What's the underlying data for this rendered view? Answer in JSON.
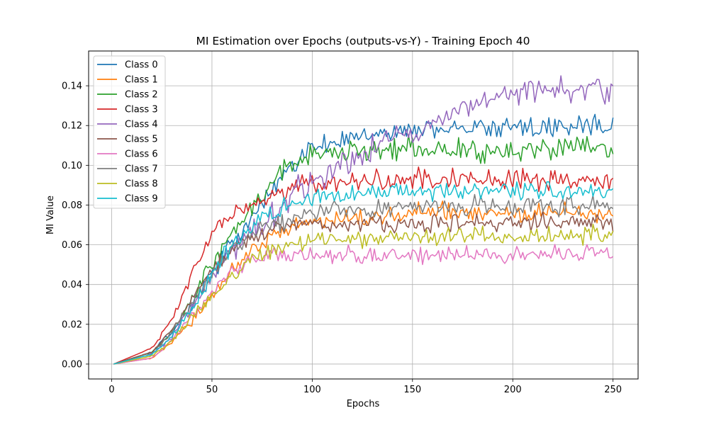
{
  "chart_data": {
    "type": "line",
    "title": "MI Estimation over Epochs (outputs-vs-Y) - Training Epoch 40",
    "xlabel": "Epochs",
    "ylabel": "MI Value",
    "xlim": [
      -11.5,
      262.5
    ],
    "ylim": [
      -0.0075,
      0.1575
    ],
    "xticks": [
      0,
      50,
      100,
      150,
      200,
      250
    ],
    "yticks": [
      0.0,
      0.02,
      0.04,
      0.06,
      0.08,
      0.1,
      0.12,
      0.14
    ],
    "ytick_labels": [
      "0.00",
      "0.02",
      "0.04",
      "0.06",
      "0.08",
      "0.10",
      "0.12",
      "0.14"
    ],
    "grid": true,
    "legend_position": "upper-left",
    "x_range": [
      1,
      250
    ],
    "series": [
      {
        "name": "Class 0",
        "color": "#1f77b4",
        "keypoints": [
          [
            1,
            0
          ],
          [
            20,
            0.006
          ],
          [
            30,
            0.016
          ],
          [
            40,
            0.03
          ],
          [
            50,
            0.046
          ],
          [
            60,
            0.06
          ],
          [
            70,
            0.074
          ],
          [
            80,
            0.088
          ],
          [
            90,
            0.1
          ],
          [
            100,
            0.108
          ],
          [
            115,
            0.113
          ],
          [
            130,
            0.116
          ],
          [
            150,
            0.118
          ],
          [
            200,
            0.119
          ],
          [
            250,
            0.12
          ]
        ],
        "noise": 0.0024
      },
      {
        "name": "Class 1",
        "color": "#ff7f0e",
        "keypoints": [
          [
            1,
            0
          ],
          [
            20,
            0.003
          ],
          [
            30,
            0.011
          ],
          [
            40,
            0.022
          ],
          [
            50,
            0.035
          ],
          [
            60,
            0.047
          ],
          [
            70,
            0.056
          ],
          [
            80,
            0.064
          ],
          [
            90,
            0.069
          ],
          [
            100,
            0.072
          ],
          [
            120,
            0.074
          ],
          [
            150,
            0.076
          ],
          [
            250,
            0.076
          ]
        ],
        "noise": 0.0022
      },
      {
        "name": "Class 2",
        "color": "#2ca02c",
        "keypoints": [
          [
            1,
            0
          ],
          [
            20,
            0.006
          ],
          [
            30,
            0.016
          ],
          [
            40,
            0.032
          ],
          [
            50,
            0.052
          ],
          [
            60,
            0.065
          ],
          [
            70,
            0.078
          ],
          [
            80,
            0.092
          ],
          [
            90,
            0.101
          ],
          [
            100,
            0.106
          ],
          [
            120,
            0.107
          ],
          [
            150,
            0.108
          ],
          [
            200,
            0.108
          ],
          [
            250,
            0.109
          ]
        ],
        "noise": 0.0032
      },
      {
        "name": "Class 3",
        "color": "#d62728",
        "keypoints": [
          [
            1,
            0
          ],
          [
            20,
            0.008
          ],
          [
            30,
            0.022
          ],
          [
            40,
            0.045
          ],
          [
            50,
            0.066
          ],
          [
            60,
            0.075
          ],
          [
            70,
            0.08
          ],
          [
            80,
            0.085
          ],
          [
            90,
            0.089
          ],
          [
            100,
            0.091
          ],
          [
            130,
            0.092
          ],
          [
            150,
            0.093
          ],
          [
            250,
            0.092
          ]
        ],
        "noise": 0.0025
      },
      {
        "name": "Class 4",
        "color": "#9467bd",
        "keypoints": [
          [
            1,
            0
          ],
          [
            20,
            0.005
          ],
          [
            30,
            0.014
          ],
          [
            40,
            0.028
          ],
          [
            50,
            0.045
          ],
          [
            60,
            0.058
          ],
          [
            70,
            0.067
          ],
          [
            80,
            0.074
          ],
          [
            90,
            0.084
          ],
          [
            100,
            0.092
          ],
          [
            120,
            0.104
          ],
          [
            140,
            0.113
          ],
          [
            160,
            0.12
          ],
          [
            180,
            0.13
          ],
          [
            200,
            0.136
          ],
          [
            220,
            0.138
          ],
          [
            250,
            0.139
          ]
        ],
        "noise": 0.0033
      },
      {
        "name": "Class 5",
        "color": "#8c564b",
        "keypoints": [
          [
            1,
            0
          ],
          [
            20,
            0.006
          ],
          [
            30,
            0.017
          ],
          [
            40,
            0.033
          ],
          [
            50,
            0.048
          ],
          [
            60,
            0.058
          ],
          [
            70,
            0.064
          ],
          [
            80,
            0.068
          ],
          [
            90,
            0.07
          ],
          [
            100,
            0.071
          ],
          [
            150,
            0.071
          ],
          [
            250,
            0.071
          ]
        ],
        "noise": 0.0022
      },
      {
        "name": "Class 6",
        "color": "#e377c2",
        "keypoints": [
          [
            1,
            0
          ],
          [
            20,
            0.003
          ],
          [
            30,
            0.012
          ],
          [
            40,
            0.025
          ],
          [
            50,
            0.036
          ],
          [
            60,
            0.046
          ],
          [
            70,
            0.052
          ],
          [
            80,
            0.054
          ],
          [
            90,
            0.055
          ],
          [
            100,
            0.055
          ],
          [
            250,
            0.055
          ]
        ],
        "noise": 0.0021
      },
      {
        "name": "Class 7",
        "color": "#7f7f7f",
        "keypoints": [
          [
            1,
            0
          ],
          [
            20,
            0.005
          ],
          [
            30,
            0.016
          ],
          [
            40,
            0.03
          ],
          [
            50,
            0.046
          ],
          [
            60,
            0.058
          ],
          [
            70,
            0.066
          ],
          [
            80,
            0.071
          ],
          [
            90,
            0.074
          ],
          [
            100,
            0.076
          ],
          [
            130,
            0.078
          ],
          [
            150,
            0.079
          ],
          [
            250,
            0.08
          ]
        ],
        "noise": 0.0024
      },
      {
        "name": "Class 8",
        "color": "#bcbd22",
        "keypoints": [
          [
            1,
            0
          ],
          [
            20,
            0.004
          ],
          [
            30,
            0.012
          ],
          [
            40,
            0.024
          ],
          [
            50,
            0.034
          ],
          [
            60,
            0.044
          ],
          [
            70,
            0.052
          ],
          [
            80,
            0.057
          ],
          [
            90,
            0.06
          ],
          [
            100,
            0.062
          ],
          [
            150,
            0.064
          ],
          [
            250,
            0.065
          ]
        ],
        "noise": 0.0022
      },
      {
        "name": "Class 9",
        "color": "#17becf",
        "keypoints": [
          [
            1,
            0
          ],
          [
            20,
            0.005
          ],
          [
            30,
            0.014
          ],
          [
            40,
            0.028
          ],
          [
            50,
            0.045
          ],
          [
            60,
            0.06
          ],
          [
            70,
            0.07
          ],
          [
            80,
            0.076
          ],
          [
            90,
            0.081
          ],
          [
            100,
            0.084
          ],
          [
            130,
            0.086
          ],
          [
            150,
            0.087
          ],
          [
            250,
            0.087
          ]
        ],
        "noise": 0.0023
      }
    ]
  }
}
